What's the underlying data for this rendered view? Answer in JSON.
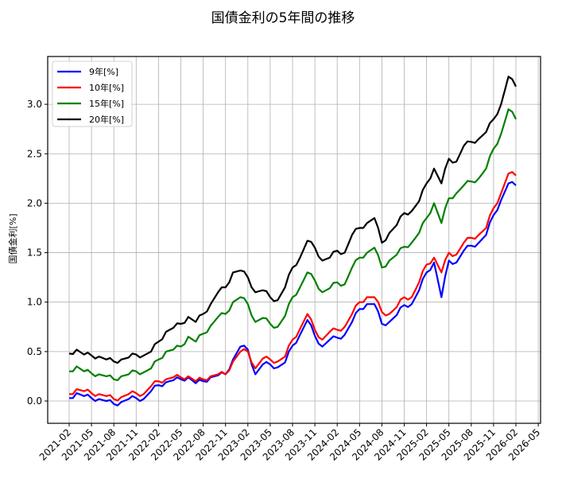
{
  "chart_data": {
    "type": "line",
    "title": "国債金利の5年間の推移",
    "xlabel": "",
    "ylabel": "国債金利[%]",
    "ylim": [
      -0.22,
      3.47
    ],
    "yticks": [
      0.0,
      0.5,
      1.0,
      1.5,
      2.0,
      2.5,
      3.0
    ],
    "ytick_labels": [
      "0.0",
      "0.5",
      "1.0",
      "1.5",
      "2.0",
      "2.5",
      "3.0"
    ],
    "xtick_labels": [
      "2021-02",
      "2021-05",
      "2021-08",
      "2021-11",
      "2022-02",
      "2022-05",
      "2022-08",
      "2022-11",
      "2023-02",
      "2023-05",
      "2023-08",
      "2023-11",
      "2024-02",
      "2024-05",
      "2024-08",
      "2024-11",
      "2025-02",
      "2025-05",
      "2025-08",
      "2025-11",
      "2026-02",
      "2026-05"
    ],
    "grid": true,
    "legend_position": "upper left",
    "x": [
      "2021-02",
      "2021-03",
      "2021-04",
      "2021-05",
      "2021-06",
      "2021-07",
      "2021-08",
      "2021-09",
      "2021-10",
      "2021-11",
      "2021-12",
      "2022-01",
      "2022-02",
      "2022-03",
      "2022-04",
      "2022-05",
      "2022-06",
      "2022-07",
      "2022-08",
      "2022-09",
      "2022-10",
      "2022-11",
      "2022-12",
      "2023-01",
      "2023-02",
      "2023-03",
      "2023-04",
      "2023-05",
      "2023-06",
      "2023-07",
      "2023-08",
      "2023-09",
      "2023-10",
      "2023-11",
      "2023-12",
      "2024-01",
      "2024-02",
      "2024-03",
      "2024-04",
      "2024-05",
      "2024-06",
      "2024-07",
      "2024-08",
      "2024-09",
      "2024-10",
      "2024-11",
      "2024-12",
      "2025-01",
      "2025-02",
      "2025-03",
      "2025-04",
      "2025-05",
      "2025-06",
      "2025-07",
      "2025-08",
      "2025-09",
      "2025-10",
      "2025-11",
      "2025-12",
      "2026-01",
      "2026-02"
    ],
    "series": [
      {
        "name": "9年[%]",
        "color": "#0000ff",
        "values": [
          0.03,
          0.08,
          0.05,
          0.03,
          0.02,
          0.0,
          -0.03,
          -0.01,
          0.02,
          0.03,
          0.02,
          0.1,
          0.16,
          0.19,
          0.21,
          0.22,
          0.24,
          0.18,
          0.2,
          0.24,
          0.26,
          0.27,
          0.42,
          0.55,
          0.52,
          0.27,
          0.37,
          0.37,
          0.34,
          0.39,
          0.56,
          0.67,
          0.82,
          0.66,
          0.55,
          0.62,
          0.64,
          0.67,
          0.8,
          0.93,
          0.98,
          0.98,
          0.78,
          0.8,
          0.87,
          0.97,
          0.98,
          1.12,
          1.3,
          1.4,
          1.05,
          1.42,
          1.4,
          1.52,
          1.57,
          1.6,
          1.68,
          1.88,
          2.03,
          2.2,
          2.18
        ]
      },
      {
        "name": "10年[%]",
        "color": "#ff0000",
        "values": [
          0.07,
          0.12,
          0.1,
          0.08,
          0.07,
          0.05,
          0.02,
          0.04,
          0.07,
          0.08,
          0.07,
          0.15,
          0.2,
          0.22,
          0.24,
          0.24,
          0.25,
          0.2,
          0.22,
          0.25,
          0.27,
          0.27,
          0.4,
          0.5,
          0.5,
          0.33,
          0.43,
          0.42,
          0.4,
          0.45,
          0.62,
          0.73,
          0.88,
          0.72,
          0.62,
          0.7,
          0.72,
          0.75,
          0.88,
          1.0,
          1.05,
          1.05,
          0.9,
          0.88,
          0.95,
          1.05,
          1.05,
          1.2,
          1.38,
          1.45,
          1.3,
          1.5,
          1.48,
          1.6,
          1.65,
          1.68,
          1.75,
          1.95,
          2.1,
          2.3,
          2.28
        ]
      },
      {
        "name": "15年[%]",
        "color": "#008000",
        "values": [
          0.3,
          0.35,
          0.3,
          0.28,
          0.27,
          0.25,
          0.22,
          0.25,
          0.27,
          0.3,
          0.29,
          0.33,
          0.42,
          0.5,
          0.52,
          0.55,
          0.65,
          0.6,
          0.68,
          0.76,
          0.85,
          0.88,
          1.0,
          1.05,
          0.98,
          0.8,
          0.84,
          0.78,
          0.75,
          0.86,
          1.05,
          1.15,
          1.3,
          1.22,
          1.1,
          1.14,
          1.2,
          1.18,
          1.35,
          1.45,
          1.5,
          1.55,
          1.35,
          1.42,
          1.48,
          1.56,
          1.6,
          1.7,
          1.85,
          2.0,
          1.8,
          2.05,
          2.1,
          2.18,
          2.22,
          2.25,
          2.35,
          2.55,
          2.7,
          2.95,
          2.85
        ]
      },
      {
        "name": "20年[%]",
        "color": "#000000",
        "values": [
          0.48,
          0.52,
          0.47,
          0.46,
          0.45,
          0.42,
          0.4,
          0.42,
          0.44,
          0.47,
          0.46,
          0.5,
          0.6,
          0.7,
          0.74,
          0.78,
          0.85,
          0.8,
          0.88,
          0.98,
          1.1,
          1.15,
          1.3,
          1.32,
          1.25,
          1.1,
          1.12,
          1.05,
          1.02,
          1.15,
          1.35,
          1.45,
          1.62,
          1.55,
          1.42,
          1.45,
          1.52,
          1.5,
          1.68,
          1.75,
          1.8,
          1.85,
          1.6,
          1.7,
          1.78,
          1.9,
          1.92,
          2.02,
          2.2,
          2.35,
          2.2,
          2.45,
          2.42,
          2.58,
          2.62,
          2.65,
          2.72,
          2.85,
          3.0,
          3.28,
          3.18
        ]
      }
    ]
  },
  "legend": {
    "items": [
      {
        "label": "9年[%]",
        "color": "#0000ff"
      },
      {
        "label": "10年[%]",
        "color": "#ff0000"
      },
      {
        "label": "15年[%]",
        "color": "#008000"
      },
      {
        "label": "20年[%]",
        "color": "#000000"
      }
    ]
  }
}
